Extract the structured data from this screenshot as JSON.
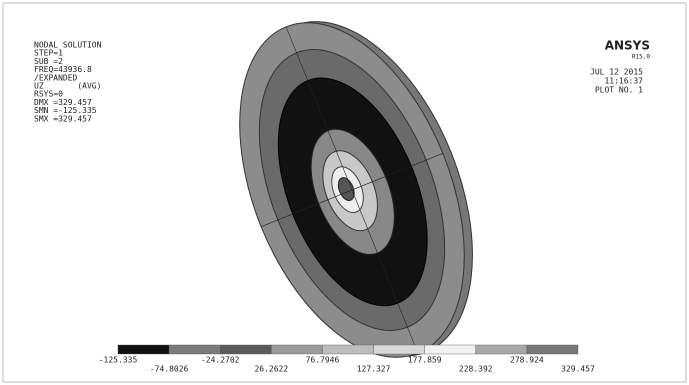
{
  "header_left": [
    "NODAL SOLUTION",
    "STEP=1",
    "SUB =2",
    "FREQ=43936.8",
    "/EXPANDED",
    "UZ       (AVG)",
    "RSYS=0",
    "DMX =329.457",
    "SMN =-125.335",
    "SMX =329.457"
  ],
  "header_right": {
    "logo": "ANSYS",
    "release": "R15.0",
    "date": "JUL 12 2015",
    "time": "11:16:37",
    "plot": "PLOT NO.   1"
  },
  "legend": {
    "labels": [
      "-125.335",
      "-74.8026",
      "-24.2702",
      "26.2622",
      "76.7946",
      "127.327",
      "177.859",
      "228.392",
      "278.924",
      "329.457"
    ]
  }
}
